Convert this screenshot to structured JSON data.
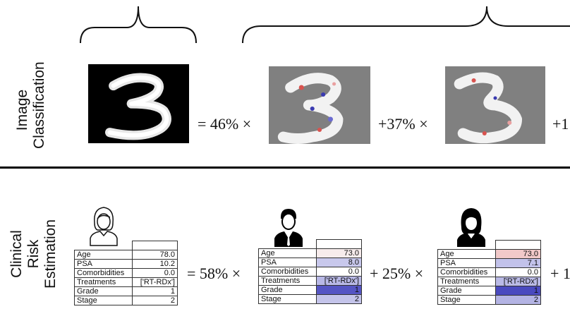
{
  "rows": {
    "image_label": [
      "Image",
      "Classification"
    ],
    "clinical_label": [
      "Clinical",
      "Risk",
      "Estimation"
    ]
  },
  "image_row": {
    "eq1": "= 46% ×",
    "eq2": "+37% ×",
    "eq3": "+1"
  },
  "clinical_row": {
    "eq1": "= 58% ×",
    "eq2": "+ 25% ×",
    "eq3": "+ 1",
    "row_labels": [
      "Age",
      "PSA",
      "Comorbidities",
      "Treatments",
      "Grade",
      "Stage"
    ],
    "tables": [
      {
        "values": [
          "78.0",
          "10.2",
          "0.0",
          "['RT-RDx']",
          "1",
          "2"
        ]
      },
      {
        "values": [
          "73.0",
          "8.0",
          "0.0",
          "['RT-RDx']",
          "1",
          "2"
        ]
      },
      {
        "values": [
          "73.0",
          "7.1",
          "0.0",
          "['RT-RDx']",
          "1",
          "2"
        ]
      }
    ]
  },
  "colors": {
    "divider": "#000000",
    "attr_red": "#d9534f",
    "attr_blue": "#3a3ab0",
    "gray_bg": "#808080"
  }
}
